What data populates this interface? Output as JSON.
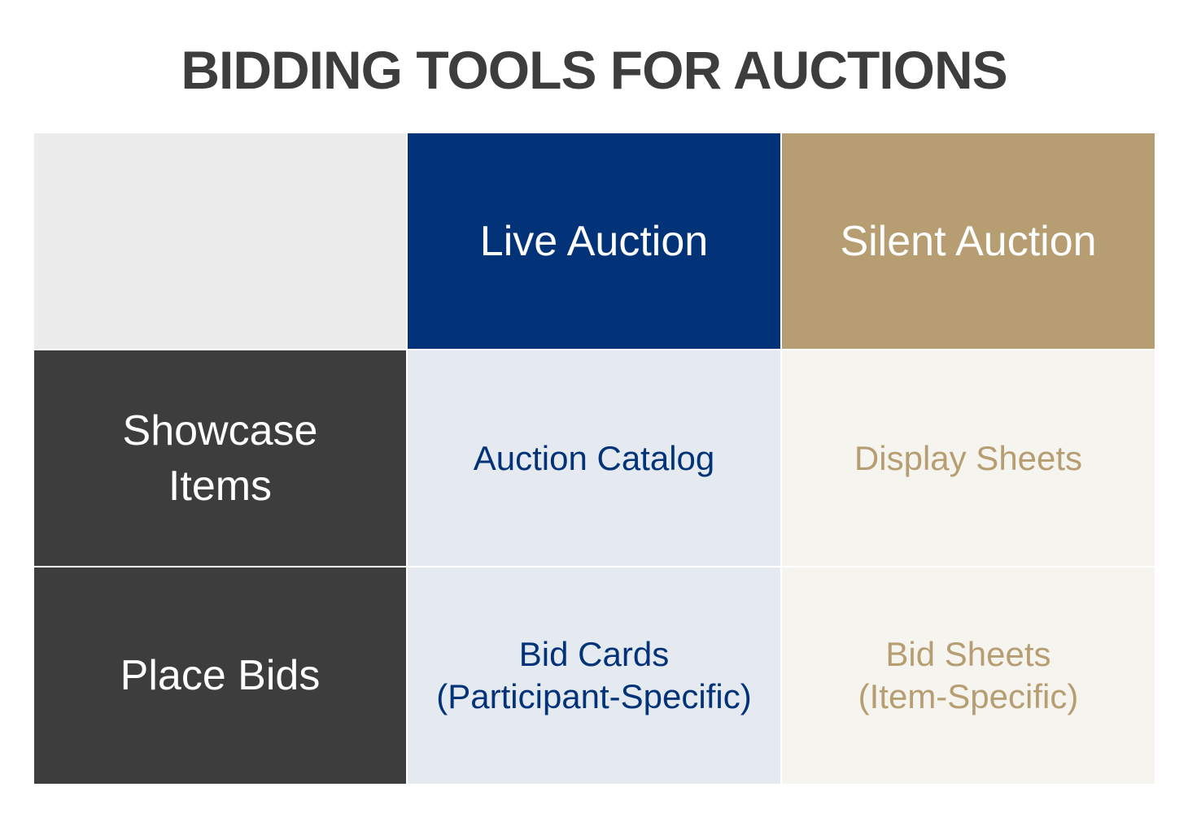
{
  "title": "BIDDING TOOLS FOR AUCTIONS",
  "columns": [
    "Live Auction",
    "Silent Auction"
  ],
  "rows": [
    {
      "label": "Showcase\nItems",
      "live": "Auction Catalog",
      "silent": "Display Sheets"
    },
    {
      "label": "Place Bids",
      "live": "Bid Cards\n(Participant-Specific)",
      "silent": "Bid Sheets\n(Item-Specific)"
    }
  ],
  "colors": {
    "live": "#023378",
    "silent": "#b69e72",
    "row_header": "#3d3d3d"
  }
}
